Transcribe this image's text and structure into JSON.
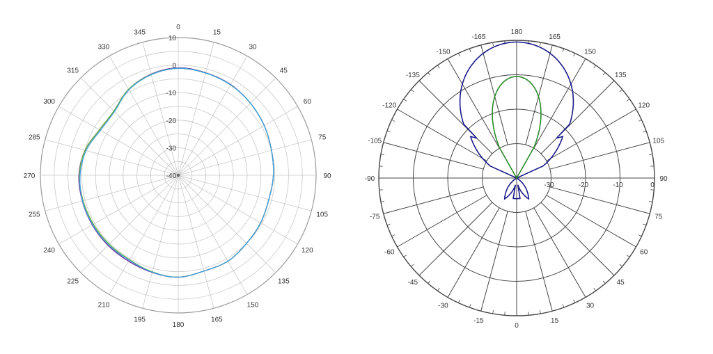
{
  "chart_data": [
    {
      "type": "polar",
      "angle_labels": [
        "0",
        "15",
        "30",
        "45",
        "60",
        "75",
        "90",
        "105",
        "120",
        "135",
        "150",
        "165",
        "180",
        "195",
        "210",
        "225",
        "240",
        "255",
        "270",
        "285",
        "300",
        "315",
        "330",
        "345"
      ],
      "angle_direction": "clockwise",
      "zero_at": "top",
      "radial_labels": [
        "10",
        "0",
        "-10",
        "-20",
        "-30",
        "-40"
      ],
      "r_range": [
        -40,
        10
      ],
      "grid": true,
      "series": [
        {
          "color": "#1a1a8a",
          "r": [
            -1,
            -1.5,
            -2,
            -3,
            -4,
            -5,
            -5.5,
            -6,
            -5.5,
            -5,
            -4,
            -4,
            -3,
            -3.5,
            -4,
            -4,
            -4,
            -4,
            -4,
            -5,
            -7,
            -7,
            -4,
            -2
          ]
        },
        {
          "color": "#7b3fa6",
          "r": [
            -1,
            -1.5,
            -2,
            -3,
            -4,
            -5,
            -5.5,
            -6,
            -5.5,
            -5,
            -4,
            -4,
            -3,
            -3.5,
            -4,
            -4,
            -4,
            -4,
            -4,
            -5,
            -7,
            -7,
            -4,
            -2
          ]
        },
        {
          "color": "#6bb539",
          "r": [
            -1.2,
            -1.6,
            -2.1,
            -3,
            -4,
            -5,
            -5.5,
            -6,
            -5.5,
            -5,
            -4,
            -4,
            -3,
            -3.7,
            -4.6,
            -4.6,
            -4.5,
            -4.3,
            -4.2,
            -5,
            -7,
            -7,
            -4,
            -2.1
          ]
        },
        {
          "color": "#3fa0e0",
          "r": [
            -1.2,
            -1.6,
            -2.1,
            -3,
            -4,
            -5,
            -5.5,
            -6,
            -5.5,
            -5,
            -4,
            -4,
            -3,
            -3.6,
            -4.4,
            -4.3,
            -4.2,
            -4.1,
            -4.4,
            -5.4,
            -7.4,
            -7.3,
            -4.2,
            -2.2
          ]
        }
      ]
    },
    {
      "type": "polar",
      "angle_labels": [
        "0",
        "-15",
        "-30",
        "-45",
        "-60",
        "-75",
        "-90",
        "-105",
        "-120",
        "-135",
        "-150",
        "-165",
        "180",
        "165",
        "150",
        "135",
        "120",
        "105",
        "90",
        "75",
        "60",
        "45",
        "30",
        "15"
      ],
      "angle_direction": "counterclockwise",
      "zero_at": "bottom",
      "radial_labels": [
        "-30",
        "-20",
        "-10",
        "0"
      ],
      "r_range": [
        -40,
        0
      ],
      "grid": true,
      "series": [
        {
          "color": "#1a1a8a",
          "shape": "main-lobe-with-side-lobes"
        },
        {
          "color": "#2a8a2a",
          "shape": "inner-lobe"
        }
      ]
    }
  ]
}
